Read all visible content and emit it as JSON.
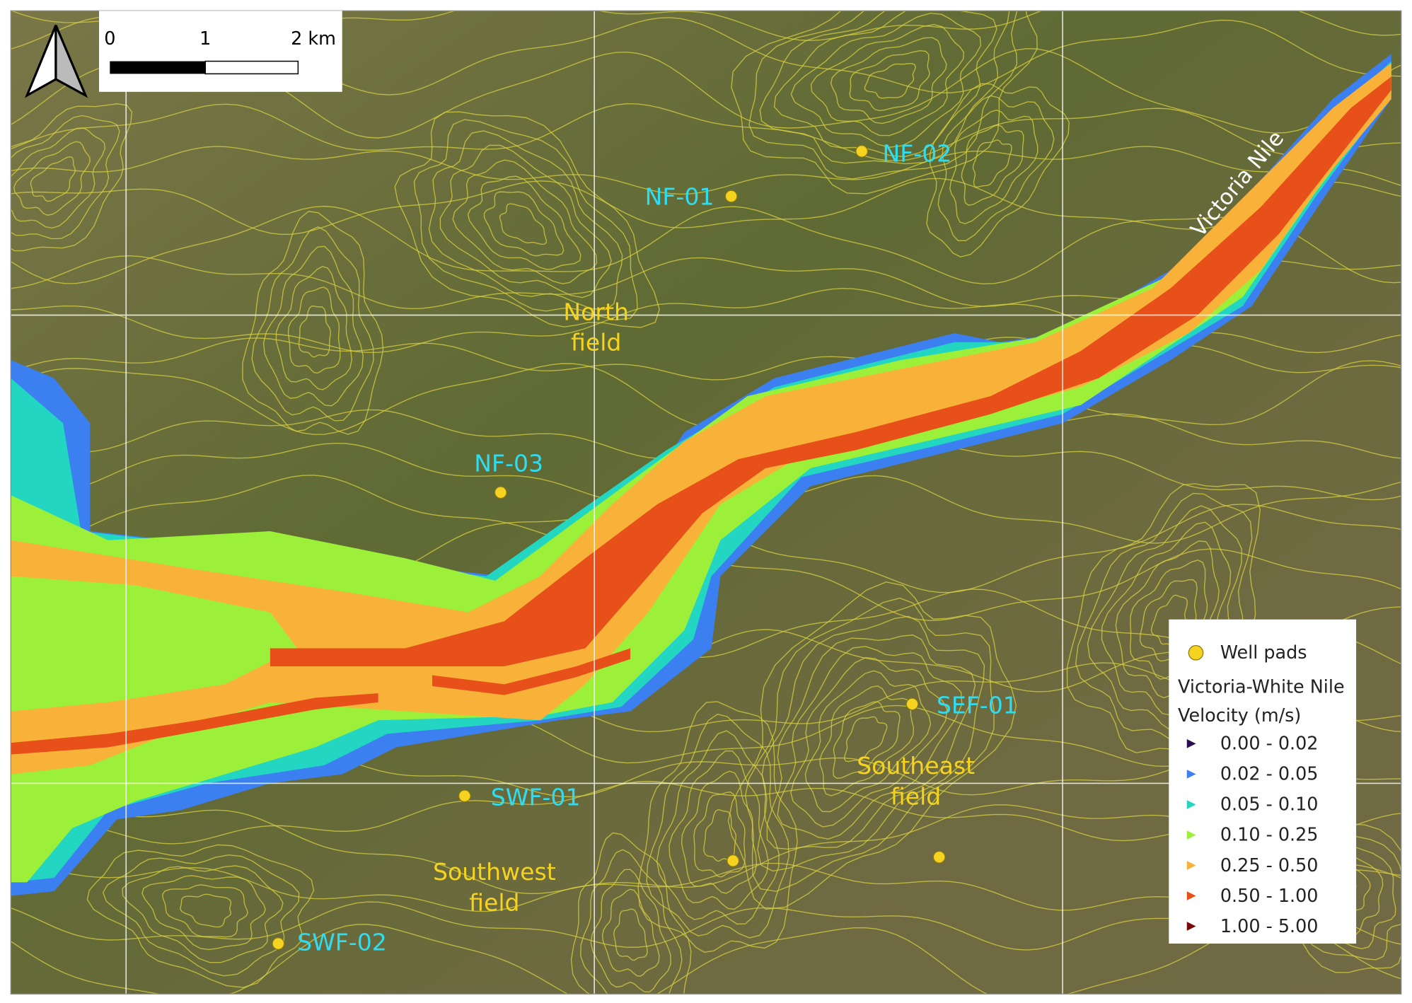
{
  "scale_bar": {
    "labels": [
      "0",
      "1",
      "2 km"
    ]
  },
  "wells": [
    {
      "label": "NF-01"
    },
    {
      "label": "NF-02"
    },
    {
      "label": "NF-03"
    },
    {
      "label": "SEF-01"
    },
    {
      "label": "SWF-01"
    },
    {
      "label": "SWF-02"
    }
  ],
  "fields": [
    {
      "lines": [
        "North",
        "field"
      ]
    },
    {
      "lines": [
        "Southeast",
        "field"
      ]
    },
    {
      "lines": [
        "Southwest",
        "field"
      ]
    }
  ],
  "river_label": "Victoria Nile",
  "legend": {
    "well_pads": "Well pads",
    "title": [
      "Victoria-White Nile",
      "Velocity (m/s)"
    ],
    "classes": [
      {
        "label": "0.00 - 0.02",
        "color": "#2a0c4e"
      },
      {
        "label": "0.02 - 0.05",
        "color": "#3c7ff0"
      },
      {
        "label": "0.05 - 0.10",
        "color": "#22d6c2"
      },
      {
        "label": "0.10 - 0.25",
        "color": "#9cf03a"
      },
      {
        "label": "0.25 - 0.50",
        "color": "#f8b23a"
      },
      {
        "label": "0.50 - 1.00",
        "color": "#e8501a"
      },
      {
        "label": "1.00 - 5.00",
        "color": "#7a0a0a"
      }
    ]
  }
}
